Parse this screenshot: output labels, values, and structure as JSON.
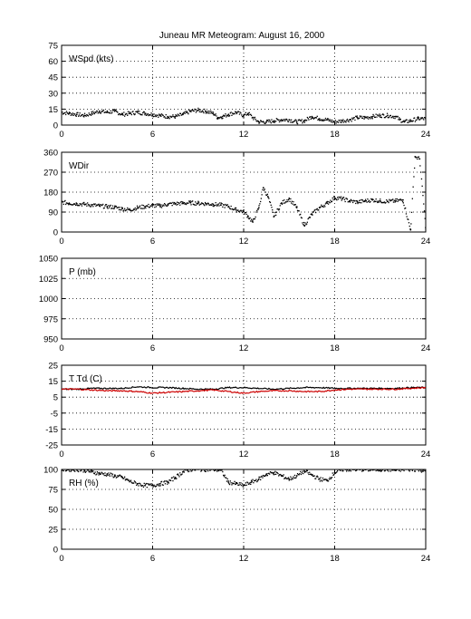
{
  "title": "Juneau MR Meteogram:     August 16, 2000",
  "chart_data": [
    {
      "type": "scatter",
      "label": "WSpd (kts)",
      "xlim": [
        0,
        24
      ],
      "ylim": [
        0,
        75
      ],
      "xticks": [
        0,
        6,
        12,
        18,
        24
      ],
      "yticks": [
        0,
        15,
        30,
        45,
        60,
        75
      ],
      "grid": true,
      "series": [
        {
          "color": "#000000",
          "x": [
            0,
            0.5,
            1,
            1.5,
            2,
            2.5,
            3,
            3.5,
            4,
            4.5,
            5,
            5.5,
            6,
            6.5,
            7,
            7.5,
            8,
            8.5,
            9,
            9.5,
            10,
            10.3,
            10.6,
            11,
            11.5,
            12,
            12.3,
            12.6,
            13,
            13.5,
            14,
            14.5,
            15,
            15.5,
            16,
            16.5,
            17,
            17.5,
            18,
            18.5,
            19,
            19.5,
            20,
            20.5,
            21,
            21.5,
            22,
            22.3,
            22.6,
            23,
            23.5,
            24
          ],
          "y": [
            12,
            11,
            10,
            9,
            11,
            13,
            12,
            13,
            10,
            11,
            12,
            11,
            10,
            9,
            8,
            8,
            10,
            13,
            14,
            13,
            11,
            7,
            8,
            10,
            12,
            9,
            11,
            7,
            3,
            3,
            4,
            5,
            5,
            3,
            4,
            8,
            6,
            5,
            3,
            4,
            5,
            7,
            7,
            8,
            9,
            9,
            8,
            5,
            3,
            4,
            6,
            6
          ]
        }
      ]
    },
    {
      "type": "scatter",
      "label": "WDir",
      "xlim": [
        0,
        24
      ],
      "ylim": [
        0,
        360
      ],
      "xticks": [
        0,
        6,
        12,
        18,
        24
      ],
      "yticks": [
        0,
        90,
        180,
        270,
        360
      ],
      "grid": true,
      "series": [
        {
          "color": "#000000",
          "x": [
            0,
            0.5,
            1,
            1.5,
            2,
            2.5,
            3,
            3.5,
            4,
            4.5,
            5,
            5.5,
            6,
            6.5,
            7,
            7.5,
            8,
            8.5,
            9,
            9.5,
            10,
            10.5,
            11,
            11.5,
            12,
            12.3,
            12.6,
            13,
            13.3,
            13.6,
            14,
            14.5,
            15,
            15.5,
            16,
            16.5,
            17,
            17.5,
            18,
            18.5,
            19,
            19.5,
            20,
            20.5,
            21,
            21.5,
            22,
            22.5,
            23,
            23.3,
            23.6,
            24
          ],
          "y": [
            135,
            130,
            128,
            125,
            122,
            118,
            115,
            112,
            105,
            100,
            110,
            115,
            120,
            118,
            125,
            128,
            130,
            132,
            130,
            128,
            125,
            122,
            115,
            100,
            92,
            70,
            45,
            110,
            200,
            160,
            70,
            130,
            150,
            110,
            30,
            80,
            110,
            130,
            155,
            150,
            140,
            135,
            140,
            145,
            140,
            138,
            140,
            145,
            10,
            340,
            330,
            20
          ]
        }
      ]
    },
    {
      "type": "scatter",
      "label": "P (mb)",
      "xlim": [
        0,
        24
      ],
      "ylim": [
        950,
        1050
      ],
      "xticks": [
        0,
        6,
        12,
        18,
        24
      ],
      "yticks": [
        950,
        975,
        1000,
        1025,
        1050
      ],
      "grid": true,
      "series": []
    },
    {
      "type": "line",
      "label": "T Td (C)",
      "xlim": [
        0,
        24
      ],
      "ylim": [
        -25,
        25
      ],
      "xticks": [
        0,
        6,
        12,
        18,
        24
      ],
      "yticks": [
        -25,
        -15,
        -5,
        5,
        15,
        25
      ],
      "grid": true,
      "series": [
        {
          "color": "#000000",
          "x": [
            0,
            1,
            2,
            3,
            4,
            5,
            6,
            7,
            8,
            9,
            10,
            11,
            12,
            13,
            14,
            15,
            16,
            17,
            18,
            19,
            20,
            21,
            22,
            23,
            24
          ],
          "y": [
            10,
            10,
            10.5,
            10.5,
            10.5,
            11.5,
            11,
            11,
            10.5,
            10,
            10,
            11,
            11,
            10.5,
            10,
            10.5,
            11,
            11,
            10.5,
            10.5,
            10.5,
            10.5,
            10.5,
            11,
            11
          ]
        },
        {
          "color": "#cc0000",
          "x": [
            0,
            1,
            2,
            3,
            4,
            5,
            6,
            7,
            8,
            9,
            10,
            11,
            12,
            13,
            14,
            15,
            16,
            17,
            18,
            19,
            20,
            21,
            22,
            23,
            24
          ],
          "y": [
            10,
            10,
            9.5,
            9,
            9,
            8.5,
            7.5,
            8,
            8.5,
            9,
            9.5,
            8.5,
            7.5,
            8.5,
            9,
            9,
            8.5,
            8.5,
            9.5,
            10,
            10,
            10,
            10,
            10.5,
            11
          ]
        }
      ]
    },
    {
      "type": "scatter",
      "label": "RH (%)",
      "xlim": [
        0,
        24
      ],
      "ylim": [
        0,
        100
      ],
      "xticks": [
        0,
        6,
        12,
        18,
        24
      ],
      "yticks": [
        0,
        25,
        50,
        75,
        100
      ],
      "grid": true,
      "series": [
        {
          "color": "#000000",
          "x": [
            0,
            0.5,
            1,
            1.5,
            2,
            2.5,
            3,
            3.5,
            4,
            4.5,
            5,
            5.5,
            6,
            6.5,
            7,
            7.5,
            8,
            8.5,
            9,
            9.5,
            10,
            10.5,
            11,
            11.5,
            12,
            12.5,
            13,
            13.5,
            14,
            14.5,
            15,
            15.5,
            16,
            16.5,
            17,
            17.5,
            18,
            18.5,
            19,
            19.5,
            20,
            20.5,
            21,
            21.5,
            22,
            22.5,
            23,
            23.5,
            24
          ],
          "y": [
            100,
            100,
            100,
            99,
            97,
            95,
            94,
            92,
            90,
            85,
            82,
            80,
            80,
            82,
            84,
            90,
            97,
            100,
            100,
            100,
            100,
            99,
            84,
            82,
            80,
            84,
            88,
            94,
            96,
            92,
            88,
            92,
            98,
            93,
            88,
            86,
            96,
            100,
            100,
            100,
            100,
            100,
            100,
            100,
            99,
            100,
            100,
            100,
            98
          ]
        }
      ]
    }
  ]
}
